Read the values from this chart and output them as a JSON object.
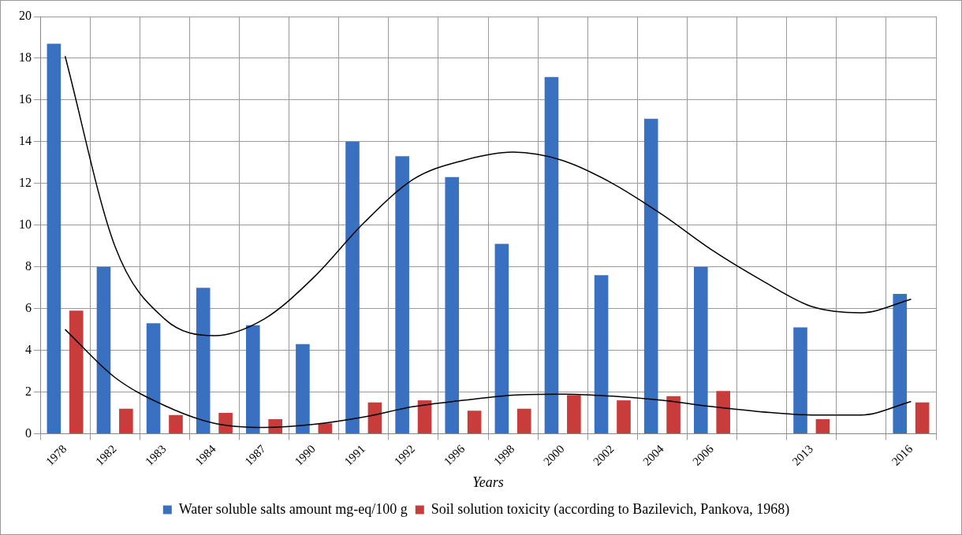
{
  "chart_data": {
    "type": "bar",
    "xlabel": "Years",
    "categories": [
      "1978",
      "1982",
      "1983",
      "1984",
      "1987",
      "1990",
      "1991",
      "1992",
      "1996",
      "1998",
      "2000",
      "2002",
      "2004",
      "2006",
      null,
      "2013",
      null,
      "2016"
    ],
    "series": [
      {
        "name": "Water soluble salts amount mg-eq/100 g",
        "color": "#3a70c0",
        "values": [
          18.7,
          8.0,
          5.3,
          7.0,
          5.2,
          4.3,
          14.0,
          13.3,
          12.3,
          9.1,
          17.1,
          7.6,
          15.1,
          8.0,
          null,
          5.1,
          null,
          6.7
        ]
      },
      {
        "name": "Soil solution toxicity (according to Bazilevich, Pankova, 1968)",
        "color": "#c83c3c",
        "values": [
          5.9,
          1.2,
          0.9,
          1.0,
          0.7,
          0.5,
          1.5,
          1.6,
          1.1,
          1.2,
          1.85,
          1.6,
          1.8,
          2.05,
          null,
          0.7,
          null,
          1.5
        ]
      },
      {
        "type": "line",
        "color": "#000000",
        "values": [
          18.1,
          9.0,
          5.5,
          4.7,
          5.5,
          7.5,
          10.1,
          12.2,
          13.1,
          13.5,
          13.1,
          12.0,
          10.5,
          8.8,
          7.35,
          6.1,
          5.8,
          6.45
        ]
      },
      {
        "type": "line",
        "color": "#000000",
        "values": [
          5.0,
          2.7,
          1.35,
          0.5,
          0.3,
          0.45,
          0.8,
          1.3,
          1.6,
          1.85,
          1.9,
          1.8,
          1.6,
          1.3,
          1.05,
          0.9,
          0.9,
          1.55
        ]
      }
    ],
    "ylim": [
      0,
      20
    ],
    "yticks": [
      0,
      2,
      4,
      6,
      8,
      10,
      12,
      14,
      16,
      18,
      20
    ],
    "grid": true,
    "legend": "bottom",
    "marker": "none"
  }
}
